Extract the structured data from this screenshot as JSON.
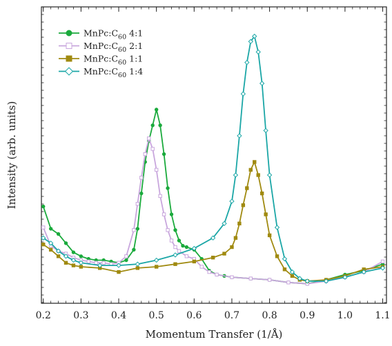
{
  "chart_data": {
    "type": "line",
    "title": "",
    "xlabel": "Momentum Transfer  (1/Å)",
    "ylabel": "Intensity  (arb. units)",
    "xlim": [
      0.195,
      1.11
    ],
    "ylim": [
      0,
      1
    ],
    "x_ticks": [
      0.2,
      0.3,
      0.4,
      0.5,
      0.6,
      0.7,
      0.8,
      0.9,
      1.0,
      1.1
    ],
    "x_tick_labels": [
      "0.2",
      "0.3",
      "0.4",
      "0.5",
      "0.6",
      "0.7",
      "0.8",
      "0.9",
      "1.0",
      "1.1"
    ],
    "y_tick_labels_shown": false,
    "grid": false,
    "legend_position": "top-left",
    "series": [
      {
        "name": "MnPc:C60 4:1",
        "legend_parts": [
          "MnPc:C",
          "60",
          " 4:1"
        ],
        "color": "#1aaa3c",
        "marker": "circle-filled",
        "x": [
          0.2,
          0.22,
          0.24,
          0.26,
          0.28,
          0.3,
          0.32,
          0.34,
          0.36,
          0.38,
          0.4,
          0.42,
          0.44,
          0.45,
          0.46,
          0.47,
          0.48,
          0.49,
          0.5,
          0.51,
          0.52,
          0.53,
          0.54,
          0.55,
          0.56,
          0.57,
          0.58,
          0.6,
          0.62,
          0.64,
          0.66,
          0.68,
          0.7,
          0.75,
          0.8,
          0.85,
          0.9,
          0.95,
          1.0,
          1.05,
          1.1
        ],
        "y": [
          0.33,
          0.245,
          0.225,
          0.19,
          0.155,
          0.14,
          0.13,
          0.125,
          0.125,
          0.12,
          0.115,
          0.125,
          0.165,
          0.245,
          0.38,
          0.5,
          0.58,
          0.64,
          0.7,
          0.64,
          0.53,
          0.4,
          0.3,
          0.24,
          0.2,
          0.18,
          0.175,
          0.165,
          0.13,
          0.085,
          0.07,
          0.065,
          0.06,
          0.055,
          0.05,
          0.04,
          0.035,
          0.05,
          0.07,
          0.085,
          0.11
        ]
      },
      {
        "name": "MnPc:C60 2:1",
        "legend_parts": [
          "MnPc:C",
          "60",
          " 2:1"
        ],
        "color": "#c8a6dd",
        "marker": "square-open",
        "x": [
          0.2,
          0.22,
          0.24,
          0.26,
          0.28,
          0.3,
          0.32,
          0.34,
          0.36,
          0.38,
          0.4,
          0.42,
          0.44,
          0.45,
          0.46,
          0.47,
          0.48,
          0.49,
          0.5,
          0.51,
          0.52,
          0.53,
          0.54,
          0.55,
          0.56,
          0.58,
          0.6,
          0.62,
          0.64,
          0.66,
          0.7,
          0.75,
          0.8,
          0.85,
          0.9,
          0.95,
          1.0,
          1.05,
          1.1
        ],
        "y": [
          0.25,
          0.18,
          0.16,
          0.15,
          0.135,
          0.125,
          0.12,
          0.115,
          0.115,
          0.11,
          0.115,
          0.14,
          0.24,
          0.34,
          0.44,
          0.53,
          0.59,
          0.55,
          0.47,
          0.37,
          0.3,
          0.24,
          0.2,
          0.175,
          0.16,
          0.14,
          0.13,
          0.1,
          0.08,
          0.07,
          0.06,
          0.055,
          0.05,
          0.04,
          0.035,
          0.045,
          0.06,
          0.08,
          0.12
        ]
      },
      {
        "name": "MnPc:C60 1:1",
        "legend_parts": [
          "MnPc:C",
          "60",
          " 1:1"
        ],
        "color": "#a08a10",
        "marker": "square-filled",
        "x": [
          0.2,
          0.22,
          0.24,
          0.26,
          0.28,
          0.3,
          0.35,
          0.4,
          0.45,
          0.5,
          0.55,
          0.6,
          0.65,
          0.68,
          0.7,
          0.71,
          0.72,
          0.73,
          0.74,
          0.75,
          0.76,
          0.77,
          0.78,
          0.79,
          0.8,
          0.82,
          0.84,
          0.86,
          0.88,
          0.9,
          0.95,
          1.0,
          1.05,
          1.1
        ],
        "y": [
          0.185,
          0.165,
          0.14,
          0.115,
          0.105,
          0.1,
          0.095,
          0.08,
          0.095,
          0.1,
          0.11,
          0.12,
          0.135,
          0.15,
          0.175,
          0.21,
          0.265,
          0.335,
          0.4,
          0.47,
          0.5,
          0.45,
          0.38,
          0.3,
          0.22,
          0.14,
          0.09,
          0.065,
          0.05,
          0.045,
          0.05,
          0.065,
          0.09,
          0.1
        ]
      },
      {
        "name": "MnPc:C60 1:4",
        "legend_parts": [
          "MnPc:C",
          "60",
          " 1:4"
        ],
        "color": "#1aa6a6",
        "marker": "diamond-open",
        "x": [
          0.2,
          0.22,
          0.24,
          0.26,
          0.28,
          0.3,
          0.35,
          0.4,
          0.45,
          0.5,
          0.55,
          0.6,
          0.65,
          0.68,
          0.7,
          0.71,
          0.72,
          0.73,
          0.74,
          0.75,
          0.76,
          0.77,
          0.78,
          0.79,
          0.8,
          0.82,
          0.84,
          0.86,
          0.88,
          0.9,
          0.95,
          1.0,
          1.05,
          1.1
        ],
        "y": [
          0.21,
          0.19,
          0.16,
          0.14,
          0.125,
          0.115,
          0.105,
          0.105,
          0.11,
          0.125,
          0.145,
          0.17,
          0.21,
          0.265,
          0.35,
          0.45,
          0.6,
          0.76,
          0.88,
          0.96,
          0.98,
          0.92,
          0.8,
          0.62,
          0.45,
          0.25,
          0.13,
          0.08,
          0.055,
          0.045,
          0.045,
          0.06,
          0.08,
          0.095
        ]
      }
    ]
  }
}
